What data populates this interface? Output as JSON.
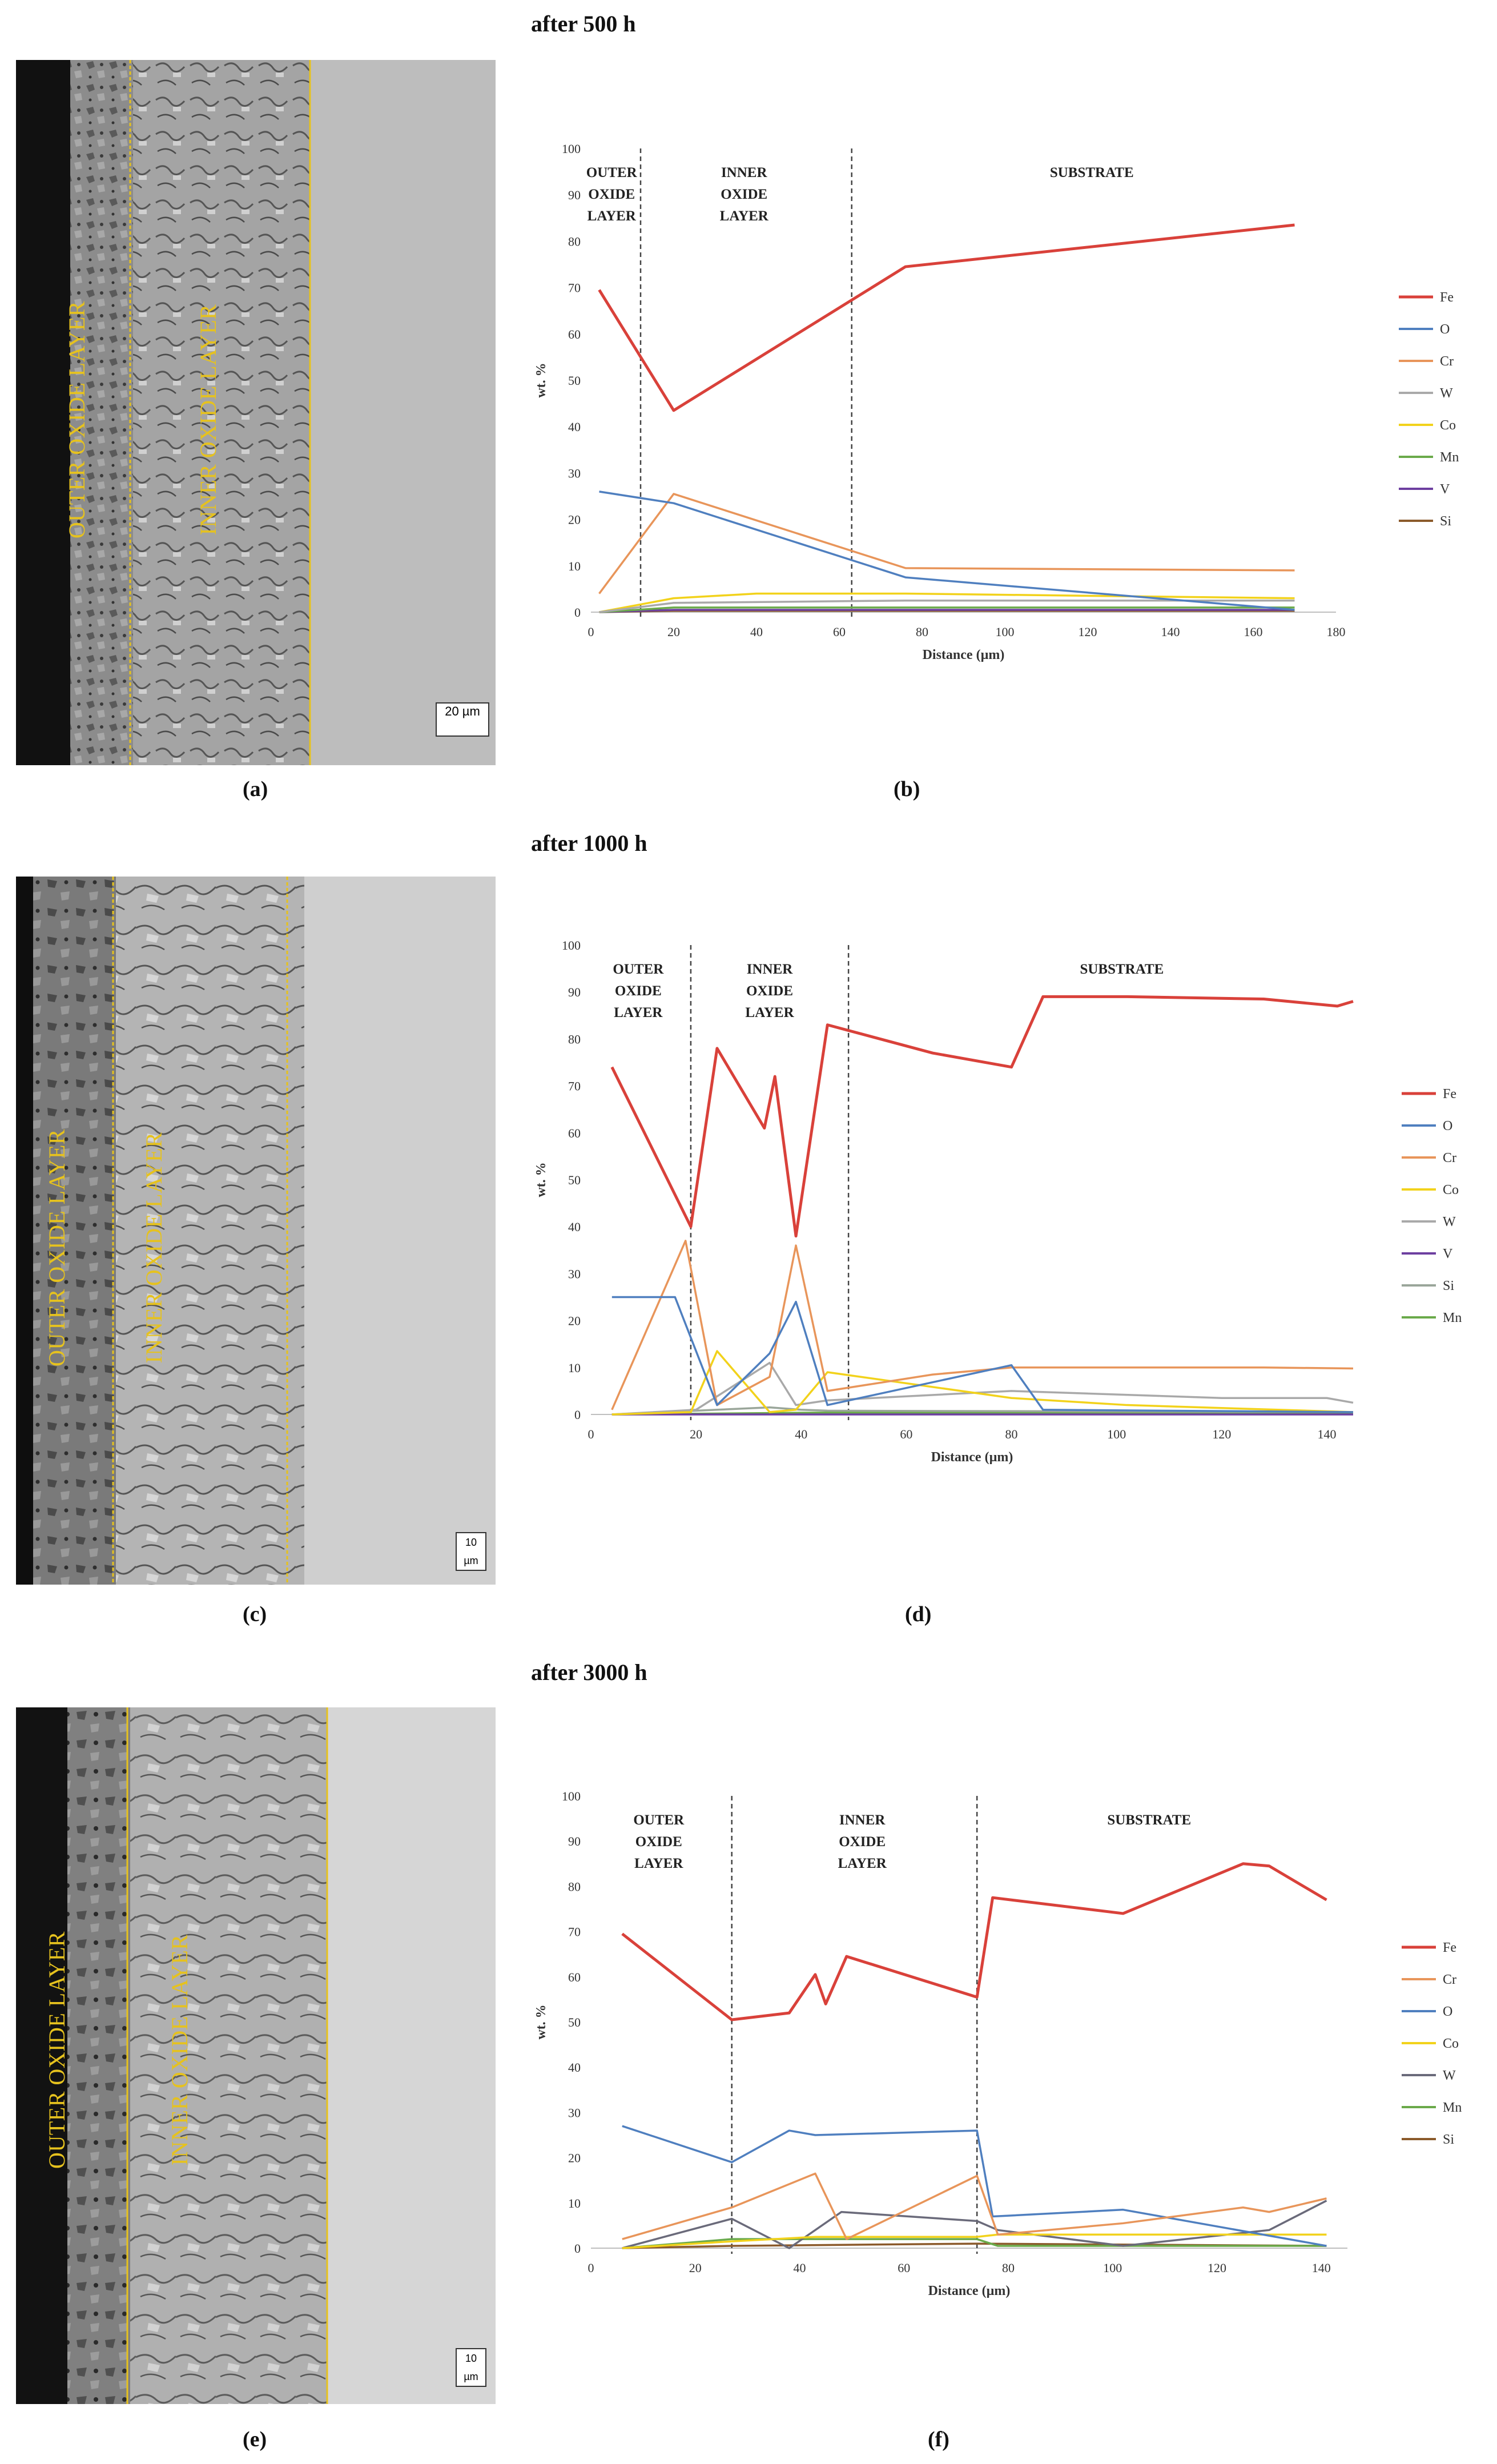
{
  "row_titles": [
    "after 500 h",
    "after 1000 h",
    "after 3000 h"
  ],
  "panel_labels": [
    "(a)",
    "(b)",
    "(c)",
    "(d)",
    "(e)",
    "(f)"
  ],
  "sem_images": [
    {
      "outer_label": "OUTER OXIDE LAYER",
      "inner_label": "INNER OXIDE LAYER",
      "scale_text": "20 µm"
    },
    {
      "outer_label": "OUTER OXIDE LAYER",
      "inner_label": "INNER OXIDE LAYER",
      "scale_text": "10 µm"
    },
    {
      "outer_label": "OUTER OXIDE LAYER",
      "inner_label": "INNER OXIDE LAYER",
      "scale_text": "10 µm"
    }
  ],
  "colors": {
    "Fe": "#d9413a",
    "O": "#4f7fbf",
    "Cr": "#e8955a",
    "W": "#a9a9a9",
    "Co": "#f2d21b",
    "Mn": "#6aaa4a",
    "V": "#6d3fa0",
    "Si": "#8b5a2b",
    "W_f": "#6a6a7a",
    "Si_d": "#9aa69a"
  },
  "chart_data": [
    {
      "type": "line",
      "xlabel": "Distance (µm)",
      "ylabel": "wt. %",
      "xlim": [
        0,
        180
      ],
      "ylim": [
        0,
        100
      ],
      "xticks": [
        0,
        20,
        40,
        60,
        80,
        100,
        120,
        140,
        160,
        180
      ],
      "yticks": [
        0,
        10,
        20,
        30,
        40,
        50,
        60,
        70,
        80,
        90,
        100
      ],
      "dividers": [
        12,
        63
      ],
      "regions": [
        {
          "lines": [
            "OUTER",
            "OXIDE",
            "LAYER"
          ],
          "x": 5
        },
        {
          "lines": [
            "INNER",
            "OXIDE",
            "LAYER"
          ],
          "x": 37
        },
        {
          "lines": [
            "SUBSTRATE"
          ],
          "x": 121
        }
      ],
      "legend": [
        "Fe",
        "O",
        "Cr",
        "W",
        "Co",
        "Mn",
        "V",
        "Si"
      ],
      "series": [
        {
          "name": "Fe",
          "x": [
            2,
            20,
            76,
            170
          ],
          "y": [
            69.5,
            43.5,
            74.5,
            83.5
          ]
        },
        {
          "name": "O",
          "x": [
            2,
            20,
            76,
            170
          ],
          "y": [
            26,
            23.5,
            7.5,
            0.5
          ]
        },
        {
          "name": "Cr",
          "x": [
            2,
            20,
            76,
            170
          ],
          "y": [
            4,
            25.5,
            9.5,
            9
          ]
        },
        {
          "name": "W",
          "x": [
            2,
            20,
            76,
            170
          ],
          "y": [
            0,
            2,
            2.5,
            2.5
          ]
        },
        {
          "name": "Co",
          "x": [
            2,
            20,
            40,
            76,
            170
          ],
          "y": [
            0,
            3,
            4,
            4,
            3
          ]
        },
        {
          "name": "Mn",
          "x": [
            2,
            20,
            76,
            170
          ],
          "y": [
            0,
            1,
            1,
            1
          ]
        },
        {
          "name": "V",
          "x": [
            2,
            20,
            76,
            170
          ],
          "y": [
            0,
            0.5,
            0.5,
            0.5
          ]
        },
        {
          "name": "Si",
          "x": [
            2,
            20,
            76,
            170
          ],
          "y": [
            0,
            0.3,
            0.3,
            0.3
          ]
        }
      ]
    },
    {
      "type": "line",
      "xlabel": "Distance (µm)",
      "ylabel": "wt. %",
      "xlim": [
        0,
        145
      ],
      "ylim": [
        0,
        100
      ],
      "xticks": [
        0,
        20,
        40,
        60,
        80,
        100,
        120,
        140
      ],
      "yticks": [
        0,
        10,
        20,
        30,
        40,
        50,
        60,
        70,
        80,
        90,
        100
      ],
      "dividers": [
        19,
        49
      ],
      "regions": [
        {
          "lines": [
            "OUTER",
            "OXIDE",
            "LAYER"
          ],
          "x": 9
        },
        {
          "lines": [
            "INNER",
            "OXIDE",
            "LAYER"
          ],
          "x": 34
        },
        {
          "lines": [
            "SUBSTRATE"
          ],
          "x": 101
        }
      ],
      "legend": [
        "Fe",
        "O",
        "Cr",
        "Co",
        "W",
        "V",
        "Si",
        "Mn"
      ],
      "series": [
        {
          "name": "Fe",
          "x": [
            4,
            19,
            24,
            33,
            35,
            39,
            45,
            65,
            80,
            86,
            102,
            128,
            142,
            145
          ],
          "y": [
            74,
            40,
            78,
            61,
            72,
            38,
            83,
            77,
            74,
            89,
            89,
            88.5,
            87,
            88
          ]
        },
        {
          "name": "O",
          "x": [
            4,
            16,
            24,
            34,
            39,
            45,
            80,
            86,
            145
          ],
          "y": [
            25,
            25,
            2,
            13,
            24,
            2,
            10.5,
            1,
            0.5
          ]
        },
        {
          "name": "Cr",
          "x": [
            4,
            18,
            24,
            34,
            39,
            45,
            65,
            80,
            128,
            145
          ],
          "y": [
            1,
            37,
            2,
            8,
            36,
            5,
            8.5,
            10,
            10,
            9.8
          ]
        },
        {
          "name": "Co",
          "x": [
            4,
            19,
            24,
            34,
            39,
            45,
            80,
            102,
            145
          ],
          "y": [
            0,
            0.5,
            13.5,
            0.5,
            1,
            9,
            3.5,
            2,
            0.5
          ]
        },
        {
          "name": "W",
          "x": [
            4,
            20,
            34,
            39,
            45,
            80,
            120,
            140,
            145
          ],
          "y": [
            0,
            1,
            11,
            2,
            3,
            5,
            3.5,
            3.5,
            2.5
          ]
        },
        {
          "name": "V",
          "x": [
            4,
            145
          ],
          "y": [
            0,
            0
          ]
        },
        {
          "name": "Si",
          "x": [
            4,
            24,
            34,
            40,
            45,
            145
          ],
          "y": [
            0,
            1,
            1.5,
            1,
            0.8,
            0.5
          ]
        },
        {
          "name": "Mn",
          "x": [
            4,
            45,
            145
          ],
          "y": [
            0,
            0.4,
            0.3
          ]
        }
      ]
    },
    {
      "type": "line",
      "xlabel": "Distance (µm)",
      "ylabel": "wt. %",
      "xlim": [
        0,
        145
      ],
      "ylim": [
        0,
        100
      ],
      "xticks": [
        0,
        20,
        40,
        60,
        80,
        100,
        120,
        140
      ],
      "yticks": [
        0,
        10,
        20,
        30,
        40,
        50,
        60,
        70,
        80,
        90,
        100
      ],
      "dividers": [
        27,
        74
      ],
      "regions": [
        {
          "lines": [
            "OUTER",
            "OXIDE",
            "LAYER"
          ],
          "x": 13
        },
        {
          "lines": [
            "INNER",
            "OXIDE",
            "LAYER"
          ],
          "x": 52
        },
        {
          "lines": [
            "SUBSTRATE"
          ],
          "x": 107
        }
      ],
      "legend": [
        "Fe",
        "Cr",
        "O",
        "Co",
        "W",
        "Mn",
        "Si"
      ],
      "series": [
        {
          "name": "Fe",
          "x": [
            6,
            27,
            38,
            43,
            45,
            49,
            74,
            77,
            102,
            125,
            130,
            141
          ],
          "y": [
            69.5,
            50.5,
            52,
            60.5,
            54,
            64.5,
            55.5,
            77.5,
            74,
            85,
            84.5,
            77
          ]
        },
        {
          "name": "Cr",
          "x": [
            6,
            27,
            43,
            49,
            74,
            78,
            102,
            125,
            130,
            141
          ],
          "y": [
            2,
            9,
            16.5,
            2,
            16,
            3,
            5.5,
            9,
            8,
            11
          ]
        },
        {
          "name": "O",
          "x": [
            6,
            27,
            38,
            43,
            74,
            77,
            102,
            141
          ],
          "y": [
            27,
            19,
            26,
            25,
            26,
            7,
            8.5,
            0.5
          ]
        },
        {
          "name": "Co",
          "x": [
            6,
            27,
            43,
            74,
            78,
            141
          ],
          "y": [
            0,
            1.5,
            2.5,
            2.5,
            3,
            3
          ]
        },
        {
          "name": "W",
          "x": [
            6,
            27,
            38,
            48,
            74,
            78,
            102,
            130,
            141
          ],
          "y": [
            0,
            6.5,
            0,
            8,
            6,
            4,
            0.5,
            4,
            10.5
          ]
        },
        {
          "name": "Mn",
          "x": [
            6,
            27,
            74,
            78,
            141
          ],
          "y": [
            0,
            2,
            2,
            0.5,
            0.5
          ]
        },
        {
          "name": "Si",
          "x": [
            6,
            27,
            74,
            141
          ],
          "y": [
            0,
            0.5,
            1,
            0.5
          ]
        }
      ]
    }
  ]
}
